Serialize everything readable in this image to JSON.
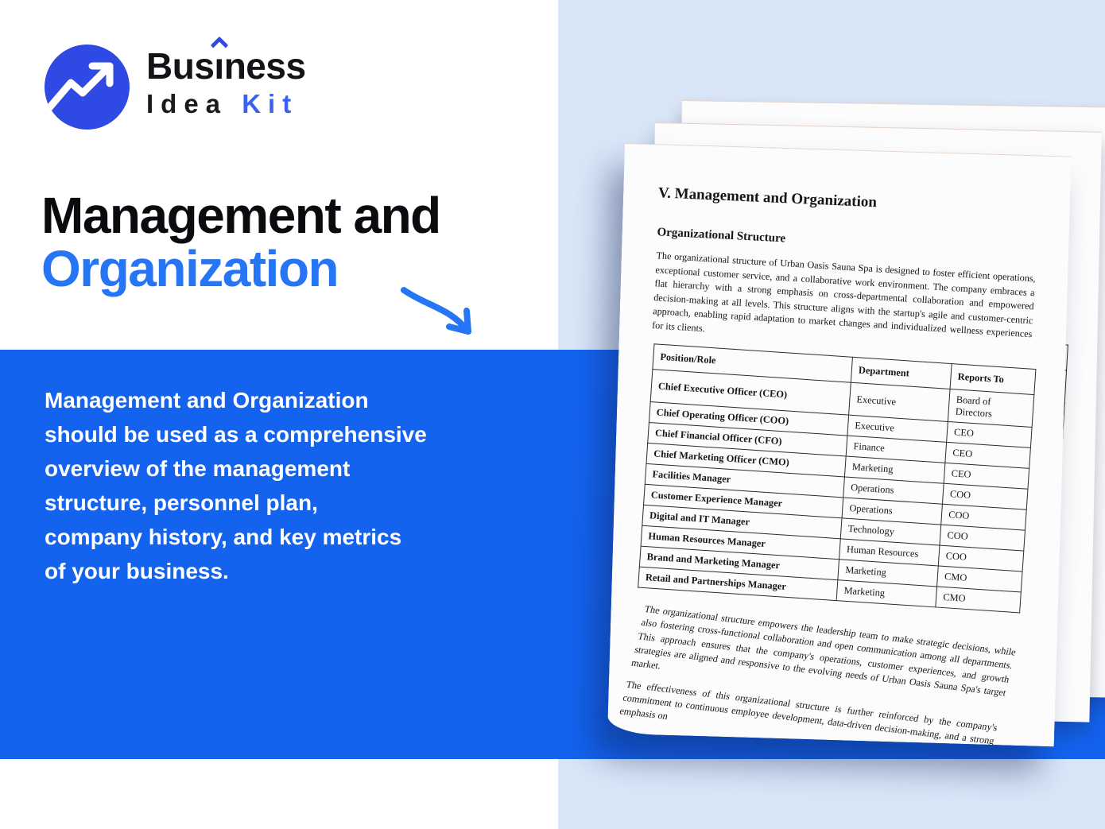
{
  "brand": {
    "line1_seg_a": "Bus",
    "line1_seg_i": "ı",
    "line1_seg_b": "ness",
    "line2_word1": "Idea",
    "line2_word2": "Kit"
  },
  "hero": {
    "title_line1": "Management and",
    "title_line2": "Organization"
  },
  "info_box": {
    "lines": [
      "Management and Organization",
      "should be used as a comprehensive",
      "overview of the management",
      "structure, personnel plan,",
      "company history, and key metrics",
      "of your business."
    ]
  },
  "document": {
    "title": "V. Management and Organization",
    "section_heading": "Organizational Structure",
    "paragraph1": "The organizational structure of Urban Oasis Sauna Spa is designed to foster efficient operations, exceptional customer service, and a collaborative work environment. The company embraces a flat hierarchy with a strong emphasis on cross-departmental collaboration and empowered decision-making at all levels. This structure aligns with the startup's agile and customer-centric approach, enabling rapid adaptation to market changes and individualized wellness experiences for its clients.",
    "table": {
      "headers": [
        "Position/Role",
        "Department",
        "Reports To"
      ],
      "rows": [
        [
          "Chief Executive Officer (CEO)",
          "Executive",
          "Board of Directors"
        ],
        [
          "Chief Operating Officer (COO)",
          "Executive",
          "CEO"
        ],
        [
          "Chief Financial Officer (CFO)",
          "Finance",
          "CEO"
        ],
        [
          "Chief Marketing Officer (CMO)",
          "Marketing",
          "CEO"
        ],
        [
          "Facilities Manager",
          "Operations",
          "COO"
        ],
        [
          "Customer Experience Manager",
          "Operations",
          "COO"
        ],
        [
          "Digital and IT Manager",
          "Technology",
          "COO"
        ],
        [
          "Human Resources Manager",
          "Human Resources",
          "COO"
        ],
        [
          "Brand and Marketing Manager",
          "Marketing",
          "CMO"
        ],
        [
          "Retail and Partnerships Manager",
          "Marketing",
          "CMO"
        ]
      ]
    },
    "paragraph2": "The organizational structure empowers the leadership team to make strategic decisions, while also fostering cross-functional collaboration and open communication among all departments. This approach ensures that the company's operations, customer experiences, and growth strategies are aligned and responsive to the evolving needs of Urban Oasis Sauna Spa's target market.",
    "paragraph3": "The effectiveness of this organizational structure is further reinforced by the company's commitment to continuous employee development, data-driven decision-making, and a strong emphasis on"
  },
  "colors": {
    "band_blue": "#1463ef",
    "panel_blue": "#d9e6f8",
    "accent_blue": "#2575f5",
    "logo_circle_blue": "#2e49e4",
    "kit_blue": "#3a62f2"
  }
}
